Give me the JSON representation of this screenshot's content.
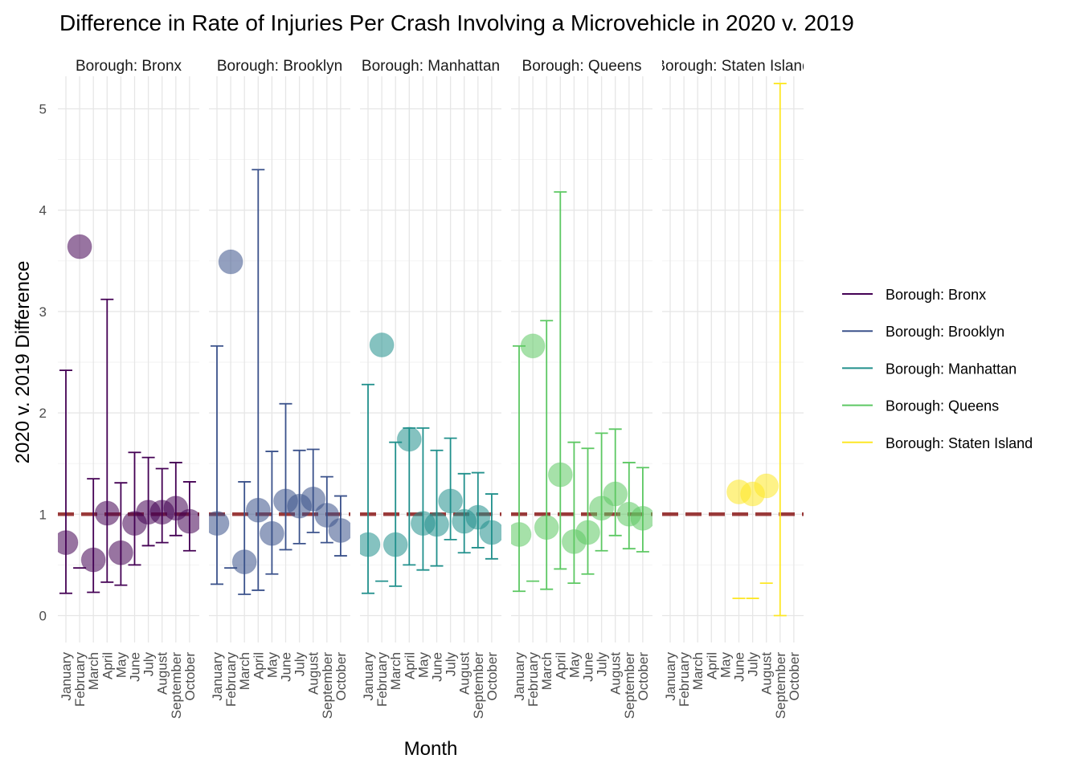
{
  "chart_data": {
    "type": "scatter",
    "title": "Difference in Rate of Injuries Per Crash Involving a Microvehicle in 2020 v. 2019",
    "xlabel": "Month",
    "ylabel": "2020 v. 2019 Difference",
    "ylim": [
      -0.25,
      5.25
    ],
    "yticks": [
      0,
      1,
      2,
      3,
      4,
      5
    ],
    "reference_line": 1,
    "grid": true,
    "legend_position": "right",
    "categories": [
      "January",
      "February",
      "March",
      "April",
      "May",
      "June",
      "July",
      "August",
      "September",
      "October"
    ],
    "panels": [
      {
        "label": "Borough: Bronx",
        "color": "#440154",
        "values": [
          0.72,
          3.64,
          0.55,
          1.01,
          0.62,
          0.91,
          1.02,
          1.02,
          1.06,
          0.93
        ],
        "lower": [
          0.22,
          0.47,
          0.23,
          0.33,
          0.3,
          0.5,
          0.69,
          0.72,
          0.79,
          0.64
        ],
        "upper": [
          2.42,
          null,
          1.35,
          3.12,
          1.31,
          1.61,
          1.56,
          1.45,
          1.51,
          1.32
        ]
      },
      {
        "label": "Borough: Brooklyn",
        "color": "#3B528B",
        "values": [
          0.91,
          3.49,
          0.53,
          1.04,
          0.81,
          1.13,
          1.08,
          1.15,
          0.99,
          0.84
        ],
        "lower": [
          0.31,
          0.47,
          0.21,
          0.25,
          0.41,
          0.65,
          0.71,
          0.82,
          0.72,
          0.59
        ],
        "upper": [
          2.66,
          null,
          1.32,
          4.4,
          1.62,
          2.09,
          1.63,
          1.64,
          1.37,
          1.18
        ]
      },
      {
        "label": "Borough: Manhattan",
        "color": "#21908C",
        "values": [
          0.7,
          2.67,
          0.7,
          1.74,
          0.91,
          0.9,
          1.13,
          0.93,
          0.97,
          0.82
        ],
        "lower": [
          0.22,
          0.34,
          0.29,
          0.5,
          0.45,
          0.49,
          0.75,
          0.62,
          0.67,
          0.56
        ],
        "upper": [
          2.28,
          null,
          1.71,
          1.85,
          1.85,
          1.63,
          1.75,
          1.4,
          1.41,
          1.2
        ]
      },
      {
        "label": "Borough: Queens",
        "color": "#5DC863",
        "values": [
          0.8,
          2.66,
          0.87,
          1.39,
          0.73,
          0.82,
          1.06,
          1.2,
          1.0,
          0.96
        ],
        "lower": [
          0.24,
          0.34,
          0.26,
          0.46,
          0.32,
          0.41,
          0.64,
          0.79,
          0.66,
          0.63
        ],
        "upper": [
          2.66,
          null,
          2.91,
          4.18,
          1.71,
          1.65,
          1.8,
          1.84,
          1.51,
          1.46
        ]
      },
      {
        "label": "Borough: Staten Island",
        "color": "#FDE725",
        "values": [
          null,
          null,
          null,
          null,
          null,
          1.22,
          1.2,
          1.28,
          null,
          null
        ],
        "lower": [
          null,
          null,
          null,
          null,
          null,
          0.17,
          0.17,
          0.32,
          0.0,
          null
        ],
        "upper": [
          null,
          null,
          null,
          null,
          null,
          null,
          null,
          null,
          5.25,
          null
        ]
      }
    ]
  }
}
